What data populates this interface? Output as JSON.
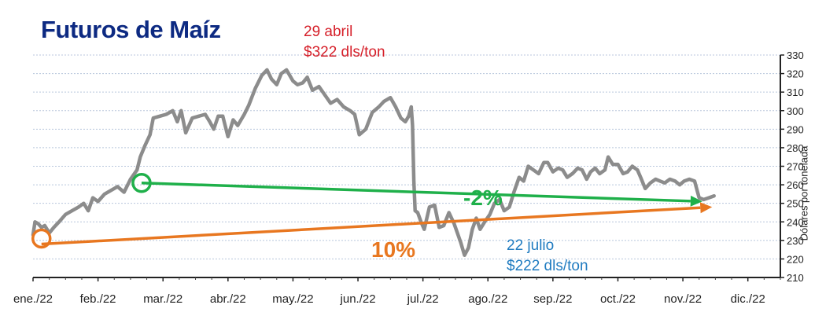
{
  "title": "Futuros de Maíz",
  "annotations": {
    "peak_date": "29 abril",
    "peak_value": "$322 dls/ton",
    "low_date": "22 julio",
    "low_value": "$222 dls/ton",
    "change_green": "-2%",
    "change_orange": "10%"
  },
  "colors": {
    "title": "#0d2a82",
    "series": "#8c8c8c",
    "green": "#1fb04a",
    "orange": "#e87720",
    "red_text": "#d6202a",
    "blue_text": "#1f7bc0",
    "grid": "#b8c6dc"
  },
  "chart_data": {
    "type": "line",
    "title": "Futuros de Maíz",
    "ylabel": "Dólares por tonelada",
    "y_axis_side": "right",
    "ylim": [
      210,
      330
    ],
    "xlim": [
      0,
      11.5
    ],
    "yticks": [
      210,
      220,
      230,
      240,
      250,
      260,
      270,
      280,
      290,
      300,
      310,
      320,
      330
    ],
    "xtick_labels": [
      "ene./22",
      "feb./22",
      "mar./22",
      "abr./22",
      "may./22",
      "jun./22",
      "jul./22",
      "ago./22",
      "sep./22",
      "oct./22",
      "nov./22",
      "dic./22"
    ],
    "grid": true,
    "series": [
      {
        "values": [
          [
            0.0,
            233
          ],
          [
            0.03,
            240
          ],
          [
            0.08,
            239
          ],
          [
            0.13,
            237
          ],
          [
            0.18,
            238
          ],
          [
            0.25,
            234
          ],
          [
            0.32,
            237
          ],
          [
            0.4,
            240
          ],
          [
            0.5,
            244
          ],
          [
            0.6,
            246
          ],
          [
            0.7,
            248
          ],
          [
            0.78,
            250
          ],
          [
            0.85,
            246
          ],
          [
            0.92,
            253
          ],
          [
            1.0,
            251
          ],
          [
            1.1,
            255
          ],
          [
            1.2,
            257
          ],
          [
            1.3,
            259
          ],
          [
            1.4,
            256
          ],
          [
            1.5,
            263
          ],
          [
            1.6,
            268
          ],
          [
            1.65,
            275
          ],
          [
            1.72,
            281
          ],
          [
            1.8,
            287
          ],
          [
            1.85,
            296
          ],
          [
            1.95,
            297
          ],
          [
            2.05,
            298
          ],
          [
            2.15,
            300
          ],
          [
            2.22,
            294
          ],
          [
            2.28,
            300
          ],
          [
            2.35,
            288
          ],
          [
            2.45,
            296
          ],
          [
            2.55,
            297
          ],
          [
            2.65,
            298
          ],
          [
            2.72,
            294
          ],
          [
            2.78,
            290
          ],
          [
            2.85,
            297
          ],
          [
            2.92,
            297
          ],
          [
            3.0,
            286
          ],
          [
            3.08,
            295
          ],
          [
            3.15,
            292
          ],
          [
            3.25,
            298
          ],
          [
            3.32,
            303
          ],
          [
            3.42,
            312
          ],
          [
            3.52,
            319
          ],
          [
            3.6,
            322
          ],
          [
            3.67,
            317
          ],
          [
            3.75,
            314
          ],
          [
            3.82,
            320
          ],
          [
            3.9,
            322
          ],
          [
            4.0,
            316
          ],
          [
            4.07,
            314
          ],
          [
            4.15,
            315
          ],
          [
            4.22,
            318
          ],
          [
            4.3,
            311
          ],
          [
            4.4,
            313
          ],
          [
            4.5,
            308
          ],
          [
            4.58,
            304
          ],
          [
            4.68,
            306
          ],
          [
            4.78,
            302
          ],
          [
            4.88,
            300
          ],
          [
            4.95,
            298
          ],
          [
            5.02,
            287
          ],
          [
            5.12,
            290
          ],
          [
            5.22,
            299
          ],
          [
            5.32,
            302
          ],
          [
            5.4,
            305
          ],
          [
            5.5,
            307
          ],
          [
            5.58,
            302
          ],
          [
            5.66,
            296
          ],
          [
            5.73,
            294
          ],
          [
            5.78,
            297
          ],
          [
            5.82,
            302
          ],
          [
            5.84,
            292
          ],
          [
            5.86,
            262
          ],
          [
            5.88,
            246
          ],
          [
            5.92,
            245
          ],
          [
            5.97,
            240
          ],
          [
            6.02,
            236
          ],
          [
            6.1,
            248
          ],
          [
            6.18,
            249
          ],
          [
            6.25,
            237
          ],
          [
            6.32,
            238
          ],
          [
            6.4,
            245
          ],
          [
            6.48,
            239
          ],
          [
            6.58,
            229
          ],
          [
            6.64,
            222
          ],
          [
            6.7,
            226
          ],
          [
            6.76,
            236
          ],
          [
            6.82,
            242
          ],
          [
            6.88,
            236
          ],
          [
            6.95,
            240
          ],
          [
            7.03,
            244
          ],
          [
            7.1,
            250
          ],
          [
            7.18,
            252
          ],
          [
            7.25,
            246
          ],
          [
            7.33,
            248
          ],
          [
            7.4,
            256
          ],
          [
            7.48,
            264
          ],
          [
            7.55,
            262
          ],
          [
            7.62,
            270
          ],
          [
            7.7,
            268
          ],
          [
            7.78,
            266
          ],
          [
            7.86,
            272
          ],
          [
            7.92,
            272
          ],
          [
            8.0,
            267
          ],
          [
            8.08,
            269
          ],
          [
            8.15,
            268
          ],
          [
            8.22,
            264
          ],
          [
            8.3,
            266
          ],
          [
            8.38,
            269
          ],
          [
            8.45,
            268
          ],
          [
            8.52,
            263
          ],
          [
            8.58,
            267
          ],
          [
            8.65,
            269
          ],
          [
            8.72,
            266
          ],
          [
            8.8,
            268
          ],
          [
            8.85,
            275
          ],
          [
            8.92,
            271
          ],
          [
            9.0,
            271
          ],
          [
            9.08,
            266
          ],
          [
            9.15,
            267
          ],
          [
            9.22,
            270
          ],
          [
            9.3,
            268
          ],
          [
            9.35,
            264
          ],
          [
            9.42,
            258
          ],
          [
            9.5,
            261
          ],
          [
            9.58,
            263
          ],
          [
            9.65,
            262
          ],
          [
            9.72,
            261
          ],
          [
            9.8,
            263
          ],
          [
            9.88,
            262
          ],
          [
            9.95,
            260
          ],
          [
            10.02,
            262
          ],
          [
            10.1,
            263
          ],
          [
            10.18,
            262
          ],
          [
            10.25,
            253
          ],
          [
            10.32,
            252
          ],
          [
            10.4,
            253
          ],
          [
            10.48,
            254
          ]
        ]
      }
    ],
    "trend_lines": [
      {
        "label": "-2%",
        "color": "#1fb04a",
        "start": [
          1.67,
          261
        ],
        "end": [
          10.3,
          251
        ]
      },
      {
        "label": "10%",
        "color": "#e87720",
        "start": [
          0.13,
          228
        ],
        "end": [
          10.45,
          248
        ]
      }
    ],
    "markers": [
      {
        "color": "#1fb04a",
        "at": [
          1.67,
          261
        ]
      },
      {
        "color": "#e87720",
        "at": [
          0.13,
          231
        ]
      }
    ]
  }
}
